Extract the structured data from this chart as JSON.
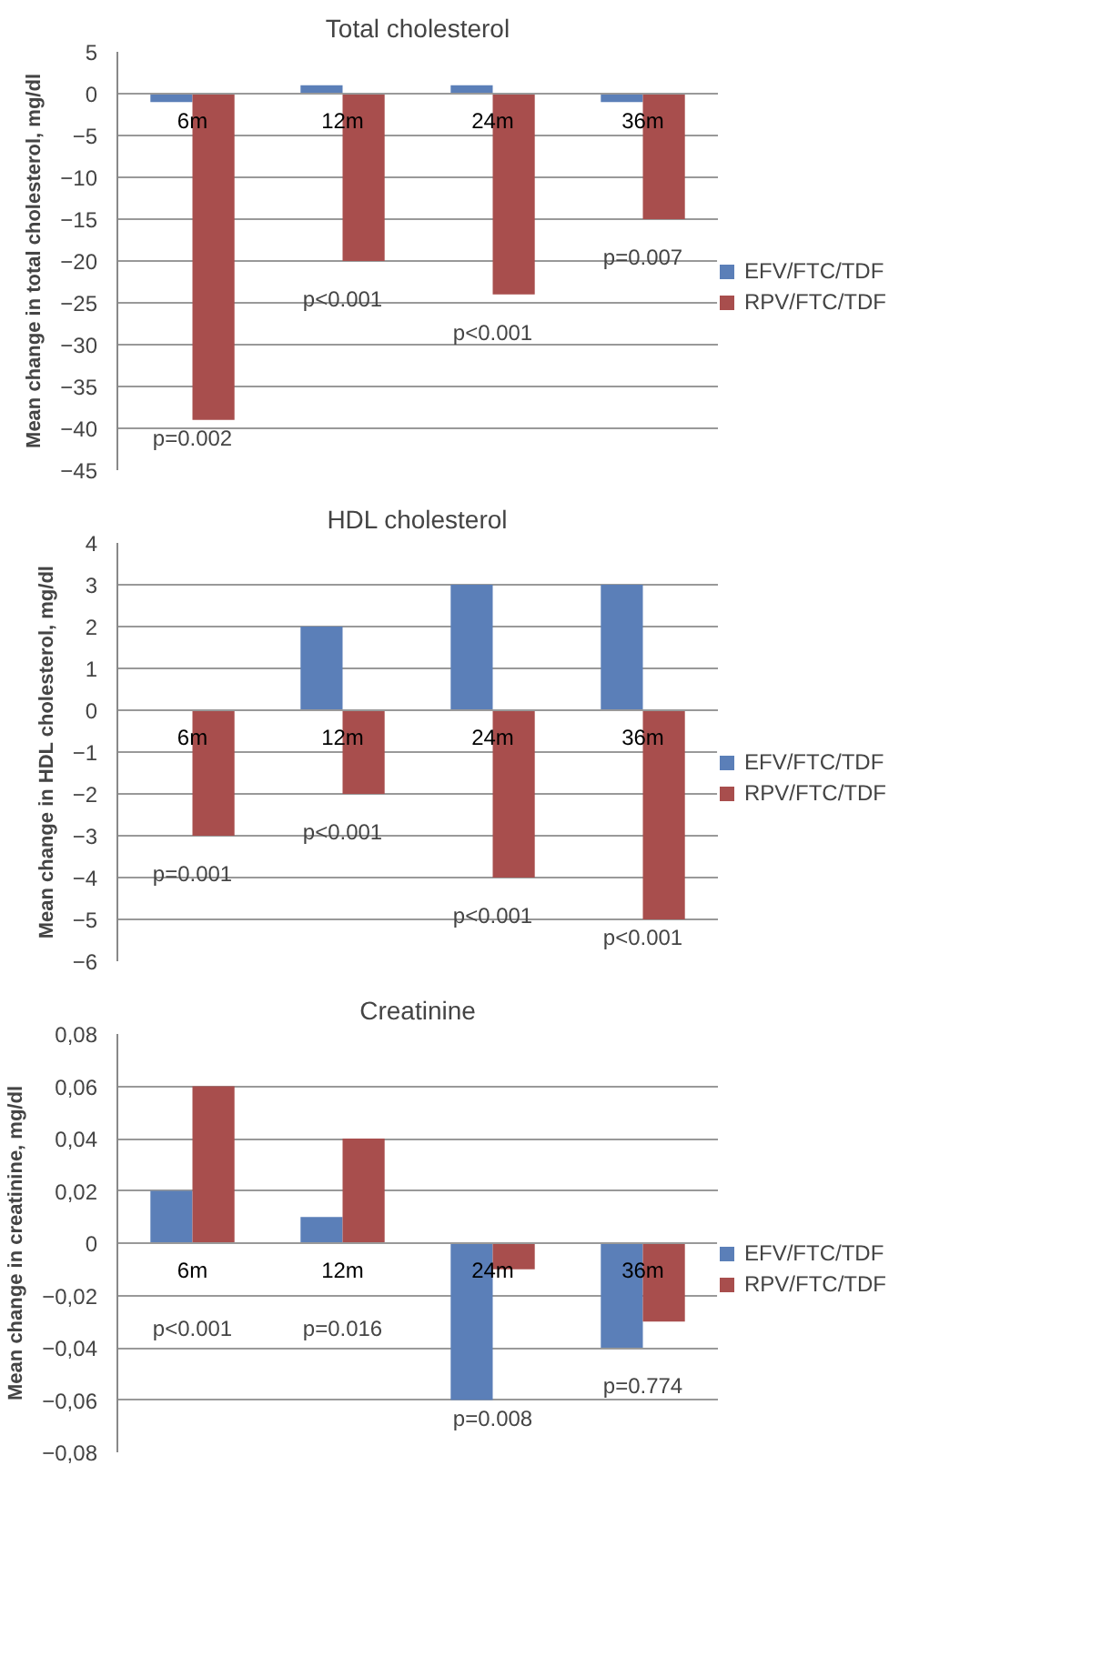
{
  "chart_data": [
    {
      "type": "bar",
      "title": "Total cholesterol",
      "ylabel": "Mean change in total cholesterol, mg/dl",
      "categories": [
        "6m",
        "12m",
        "24m",
        "36m"
      ],
      "series": [
        {
          "name": "EFV/FTC/TDF",
          "color": "#5b7fb8",
          "values": [
            -1,
            1,
            1,
            -1
          ]
        },
        {
          "name": "RPV/FTC/TDF",
          "color": "#a84e4d",
          "values": [
            -39,
            -20,
            -24,
            -15
          ]
        }
      ],
      "ylim": [
        -45,
        5
      ],
      "yticks": [
        5,
        0,
        -5,
        -10,
        -15,
        -20,
        -25,
        -30,
        -35,
        -40,
        -45
      ],
      "grid": "y",
      "legend": "right",
      "annotations": [
        "p=0.002",
        "p<0.001",
        "p<0.001",
        "p=0.007"
      ]
    },
    {
      "type": "bar",
      "title": "HDL cholesterol",
      "ylabel": "Mean change in HDL cholesterol, mg/dl",
      "categories": [
        "6m",
        "12m",
        "24m",
        "36m"
      ],
      "series": [
        {
          "name": "EFV/FTC/TDF",
          "color": "#5b7fb8",
          "values": [
            0,
            2,
            3,
            3
          ]
        },
        {
          "name": "RPV/FTC/TDF",
          "color": "#a84e4d",
          "values": [
            -3,
            -2,
            -4,
            -5
          ]
        }
      ],
      "ylim": [
        -6,
        4
      ],
      "yticks": [
        4,
        3,
        2,
        1,
        0,
        -1,
        -2,
        -3,
        -4,
        -5,
        -6
      ],
      "grid": "y",
      "legend": "right",
      "annotations": [
        "p=0.001",
        "p<0.001",
        "p<0.001",
        "p<0.001"
      ]
    },
    {
      "type": "bar",
      "title": "Creatinine",
      "ylabel": "Mean change in creatinine, mg/dl",
      "categories": [
        "6m",
        "12m",
        "24m",
        "36m"
      ],
      "series": [
        {
          "name": "EFV/FTC/TDF",
          "color": "#5b7fb8",
          "values": [
            0.02,
            0.01,
            -0.06,
            -0.04
          ]
        },
        {
          "name": "RPV/FTC/TDF",
          "color": "#a84e4d",
          "values": [
            0.06,
            0.04,
            -0.01,
            -0.03
          ]
        }
      ],
      "ylim": [
        -0.08,
        0.08
      ],
      "yticks": [
        {
          "value": 0.08,
          "label": "0,08"
        },
        {
          "value": 0.06,
          "label": "0,06"
        },
        {
          "value": 0.04,
          "label": "0,04"
        },
        {
          "value": 0.02,
          "label": "0,02"
        },
        {
          "value": 0,
          "label": "0"
        },
        {
          "value": -0.02,
          "label": "−0,02"
        },
        {
          "value": -0.04,
          "label": "−0,04"
        },
        {
          "value": -0.06,
          "label": "−0,06"
        },
        {
          "value": -0.08,
          "label": "−0,08"
        }
      ],
      "grid": "y",
      "legend": "right",
      "annotations": [
        "p<0.001",
        "p=0.016",
        "p=0.008",
        "p=0.774"
      ]
    }
  ]
}
